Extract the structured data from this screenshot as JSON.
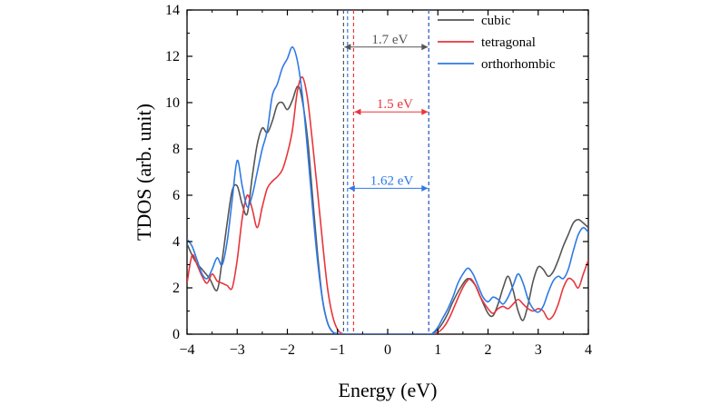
{
  "chart_data": {
    "type": "line",
    "xlabel": "Energy (eV)",
    "ylabel": "TDOS (arb. unit)",
    "xlim": [
      -4,
      4
    ],
    "ylim": [
      0,
      14
    ],
    "xticks": [
      -4,
      -3,
      -2,
      -1,
      0,
      1,
      2,
      3,
      4
    ],
    "yticks": [
      0,
      2,
      4,
      6,
      8,
      10,
      12,
      14
    ],
    "xtick_labels": [
      "−4",
      "−3",
      "−2",
      "−1",
      "0",
      "1",
      "2",
      "3",
      "4"
    ],
    "ytick_labels": [
      "0",
      "2",
      "4",
      "6",
      "8",
      "10",
      "12",
      "14"
    ],
    "legend_position": "top-right",
    "series": [
      {
        "name": "cubic",
        "color": "#555555",
        "points": [
          [
            -4,
            3.9
          ],
          [
            -3.85,
            3.2
          ],
          [
            -3.7,
            2.8
          ],
          [
            -3.55,
            2.4
          ],
          [
            -3.4,
            1.9
          ],
          [
            -3.3,
            3.2
          ],
          [
            -3.2,
            4.8
          ],
          [
            -3.1,
            6.2
          ],
          [
            -3.0,
            6.4
          ],
          [
            -2.9,
            5.6
          ],
          [
            -2.8,
            5.2
          ],
          [
            -2.7,
            6.8
          ],
          [
            -2.6,
            8.2
          ],
          [
            -2.5,
            8.9
          ],
          [
            -2.4,
            8.7
          ],
          [
            -2.3,
            9.2
          ],
          [
            -2.2,
            9.9
          ],
          [
            -2.1,
            10.0
          ],
          [
            -2.0,
            9.7
          ],
          [
            -1.9,
            10.1
          ],
          [
            -1.8,
            10.7
          ],
          [
            -1.72,
            10.3
          ],
          [
            -1.6,
            8.5
          ],
          [
            -1.5,
            6.0
          ],
          [
            -1.4,
            3.5
          ],
          [
            -1.3,
            1.5
          ],
          [
            -1.2,
            0.5
          ],
          [
            -1.1,
            0.1
          ],
          [
            -1.0,
            0.02
          ],
          [
            -0.9,
            0
          ],
          [
            0.8,
            0
          ],
          [
            0.9,
            0.05
          ],
          [
            1.0,
            0.2
          ],
          [
            1.1,
            0.5
          ],
          [
            1.2,
            0.9
          ],
          [
            1.3,
            1.4
          ],
          [
            1.45,
            2.0
          ],
          [
            1.6,
            2.4
          ],
          [
            1.75,
            2.1
          ],
          [
            1.85,
            1.6
          ],
          [
            2.0,
            0.9
          ],
          [
            2.1,
            0.8
          ],
          [
            2.2,
            1.3
          ],
          [
            2.3,
            2.0
          ],
          [
            2.4,
            2.5
          ],
          [
            2.5,
            1.9
          ],
          [
            2.6,
            1.0
          ],
          [
            2.7,
            0.6
          ],
          [
            2.8,
            1.3
          ],
          [
            2.9,
            2.3
          ],
          [
            3.0,
            2.9
          ],
          [
            3.1,
            2.8
          ],
          [
            3.2,
            2.5
          ],
          [
            3.3,
            2.7
          ],
          [
            3.4,
            3.2
          ],
          [
            3.5,
            3.8
          ],
          [
            3.6,
            4.3
          ],
          [
            3.7,
            4.8
          ],
          [
            3.8,
            4.95
          ],
          [
            3.9,
            4.8
          ],
          [
            4.0,
            4.6
          ]
        ]
      },
      {
        "name": "tetragonal",
        "color": "#e8353b",
        "points": [
          [
            -4,
            2.2
          ],
          [
            -3.9,
            3.4
          ],
          [
            -3.8,
            3.0
          ],
          [
            -3.7,
            2.5
          ],
          [
            -3.6,
            2.2
          ],
          [
            -3.5,
            2.6
          ],
          [
            -3.4,
            2.3
          ],
          [
            -3.3,
            2.2
          ],
          [
            -3.2,
            2.1
          ],
          [
            -3.1,
            2.0
          ],
          [
            -3.0,
            3.2
          ],
          [
            -2.9,
            5.0
          ],
          [
            -2.8,
            6.0
          ],
          [
            -2.7,
            5.4
          ],
          [
            -2.6,
            4.6
          ],
          [
            -2.5,
            5.5
          ],
          [
            -2.4,
            6.3
          ],
          [
            -2.3,
            6.6
          ],
          [
            -2.2,
            6.8
          ],
          [
            -2.1,
            7.1
          ],
          [
            -2.0,
            7.8
          ],
          [
            -1.9,
            8.8
          ],
          [
            -1.8,
            10.5
          ],
          [
            -1.7,
            11.1
          ],
          [
            -1.6,
            10.2
          ],
          [
            -1.5,
            8.3
          ],
          [
            -1.4,
            6.2
          ],
          [
            -1.3,
            4.0
          ],
          [
            -1.2,
            2.0
          ],
          [
            -1.1,
            0.8
          ],
          [
            -1.0,
            0.2
          ],
          [
            -0.9,
            0.02
          ],
          [
            -0.8,
            0
          ],
          [
            0.85,
            0
          ],
          [
            0.95,
            0.03
          ],
          [
            1.05,
            0.15
          ],
          [
            1.15,
            0.4
          ],
          [
            1.25,
            0.8
          ],
          [
            1.35,
            1.3
          ],
          [
            1.45,
            1.8
          ],
          [
            1.55,
            2.2
          ],
          [
            1.65,
            2.4
          ],
          [
            1.75,
            2.1
          ],
          [
            1.85,
            1.6
          ],
          [
            2.0,
            1.1
          ],
          [
            2.1,
            0.9
          ],
          [
            2.2,
            1.1
          ],
          [
            2.3,
            1.2
          ],
          [
            2.4,
            1.1
          ],
          [
            2.5,
            1.3
          ],
          [
            2.6,
            1.5
          ],
          [
            2.7,
            1.3
          ],
          [
            2.8,
            1.1
          ],
          [
            2.9,
            1.0
          ],
          [
            3.0,
            1.1
          ],
          [
            3.1,
            1.0
          ],
          [
            3.2,
            0.65
          ],
          [
            3.3,
            0.8
          ],
          [
            3.4,
            1.3
          ],
          [
            3.5,
            2.0
          ],
          [
            3.6,
            2.4
          ],
          [
            3.7,
            2.3
          ],
          [
            3.8,
            2.0
          ],
          [
            3.9,
            2.6
          ],
          [
            4.0,
            3.2
          ]
        ]
      },
      {
        "name": "orthorhombic",
        "color": "#2e7ae6",
        "points": [
          [
            -4,
            4.1
          ],
          [
            -3.9,
            3.8
          ],
          [
            -3.8,
            3.2
          ],
          [
            -3.7,
            2.6
          ],
          [
            -3.6,
            2.4
          ],
          [
            -3.5,
            2.8
          ],
          [
            -3.4,
            3.3
          ],
          [
            -3.3,
            3.0
          ],
          [
            -3.2,
            4.0
          ],
          [
            -3.1,
            5.8
          ],
          [
            -3.0,
            7.5
          ],
          [
            -2.9,
            6.4
          ],
          [
            -2.8,
            5.5
          ],
          [
            -2.7,
            6.0
          ],
          [
            -2.6,
            7.0
          ],
          [
            -2.5,
            8.0
          ],
          [
            -2.4,
            8.8
          ],
          [
            -2.3,
            10.3
          ],
          [
            -2.2,
            10.8
          ],
          [
            -2.1,
            11.5
          ],
          [
            -2.0,
            11.9
          ],
          [
            -1.9,
            12.4
          ],
          [
            -1.8,
            11.8
          ],
          [
            -1.7,
            10.3
          ],
          [
            -1.6,
            8.0
          ],
          [
            -1.5,
            5.5
          ],
          [
            -1.4,
            3.2
          ],
          [
            -1.3,
            1.5
          ],
          [
            -1.2,
            0.5
          ],
          [
            -1.1,
            0.1
          ],
          [
            -1.0,
            0.02
          ],
          [
            -0.9,
            0
          ],
          [
            0.8,
            0
          ],
          [
            0.9,
            0.05
          ],
          [
            1.0,
            0.3
          ],
          [
            1.1,
            0.7
          ],
          [
            1.2,
            1.1
          ],
          [
            1.3,
            1.6
          ],
          [
            1.4,
            2.2
          ],
          [
            1.5,
            2.6
          ],
          [
            1.6,
            2.85
          ],
          [
            1.7,
            2.6
          ],
          [
            1.8,
            2.1
          ],
          [
            1.9,
            1.6
          ],
          [
            2.0,
            1.4
          ],
          [
            2.1,
            1.6
          ],
          [
            2.2,
            1.5
          ],
          [
            2.3,
            1.3
          ],
          [
            2.4,
            1.6
          ],
          [
            2.5,
            2.1
          ],
          [
            2.6,
            2.6
          ],
          [
            2.7,
            2.2
          ],
          [
            2.8,
            1.5
          ],
          [
            2.9,
            1.1
          ],
          [
            3.0,
            0.95
          ],
          [
            3.1,
            1.2
          ],
          [
            3.2,
            1.8
          ],
          [
            3.3,
            2.3
          ],
          [
            3.4,
            2.5
          ],
          [
            3.5,
            2.4
          ],
          [
            3.6,
            2.8
          ],
          [
            3.7,
            3.6
          ],
          [
            3.8,
            4.3
          ],
          [
            3.9,
            4.6
          ],
          [
            4.0,
            4.4
          ]
        ]
      }
    ],
    "band_edges": [
      {
        "name": "cubic",
        "color": "#555555",
        "vbm": -0.88,
        "cbm": 0.82
      },
      {
        "name": "tetragonal",
        "color": "#e8353b",
        "vbm": -0.68,
        "cbm": 0.82
      },
      {
        "name": "orthorhombic",
        "color": "#2e7ae6",
        "vbm": -0.8,
        "cbm": 0.82
      }
    ],
    "gap_annotations": [
      {
        "label": "1.7 eV",
        "color": "#555555",
        "y": 12.4,
        "x_from": -0.88,
        "x_to": 0.82
      },
      {
        "label": "1.5 eV",
        "color": "#e8353b",
        "y": 9.6,
        "x_from": -0.68,
        "x_to": 0.82
      },
      {
        "label": "1.62 eV",
        "color": "#2e7ae6",
        "y": 6.3,
        "x_from": -0.8,
        "x_to": 0.82
      }
    ]
  }
}
